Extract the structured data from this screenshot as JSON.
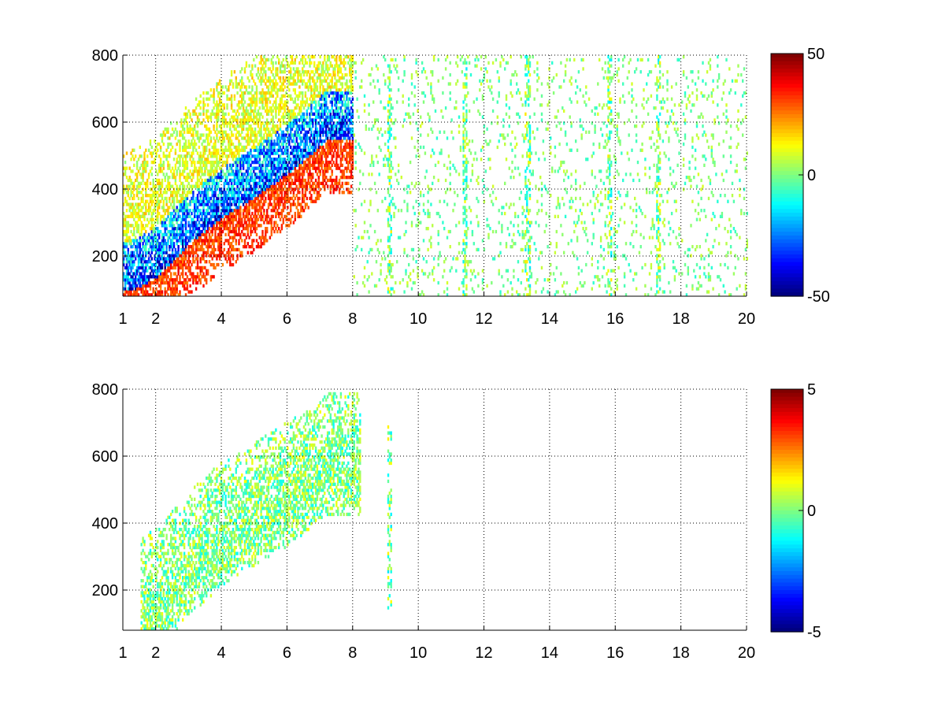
{
  "chart_data": [
    {
      "type": "heatmap",
      "title": "",
      "xlabel": "",
      "ylabel": "",
      "xlim": [
        1,
        20
      ],
      "ylim": [
        80,
        800
      ],
      "x_ticks": [
        "1",
        "2",
        "4",
        "6",
        "8",
        "10",
        "12",
        "14",
        "16",
        "18",
        "20"
      ],
      "x_tick_values": [
        1,
        2,
        4,
        6,
        8,
        10,
        12,
        14,
        16,
        18,
        20
      ],
      "y_ticks": [
        "200",
        "400",
        "600",
        "800"
      ],
      "y_tick_values": [
        200,
        400,
        600,
        800
      ],
      "grid": true,
      "colormap": "jet",
      "colorbar": {
        "min": -50,
        "max": 50,
        "ticks": [
          "50",
          "0",
          "-50"
        ],
        "tick_values": [
          50,
          0,
          -50
        ]
      },
      "features": [
        {
          "x_range": [
            1.0,
            8.0
          ],
          "ridge": [
            [
              1.2,
              90
            ],
            [
              2.0,
              130
            ],
            [
              3.0,
              230
            ],
            [
              4.0,
              310
            ],
            [
              5.0,
              370
            ],
            [
              5.7,
              420
            ],
            [
              6.5,
              480
            ],
            [
              7.2,
              540
            ]
          ],
          "value_low_side": 40,
          "value_high_side": -40
        },
        {
          "note_columns": [
            9.1,
            11.4,
            13.3,
            15.8,
            17.3
          ]
        }
      ]
    },
    {
      "type": "heatmap",
      "title": "",
      "xlabel": "",
      "ylabel": "",
      "xlim": [
        1,
        20
      ],
      "ylim": [
        80,
        800
      ],
      "x_ticks": [
        "1",
        "2",
        "4",
        "6",
        "8",
        "10",
        "12",
        "14",
        "16",
        "18",
        "20"
      ],
      "x_tick_values": [
        1,
        2,
        4,
        6,
        8,
        10,
        12,
        14,
        16,
        18,
        20
      ],
      "y_ticks": [
        "200",
        "400",
        "600",
        "800"
      ],
      "y_tick_values": [
        200,
        400,
        600,
        800
      ],
      "grid": true,
      "colormap": "jet",
      "colorbar": {
        "min": -5,
        "max": 5,
        "ticks": [
          "5",
          "0",
          "-5"
        ],
        "tick_values": [
          5,
          0,
          -5
        ]
      },
      "features": [
        {
          "x_range": [
            1.5,
            8.2
          ],
          "ridge": [
            [
              1.5,
              90
            ],
            [
              2.0,
              120
            ],
            [
              3.0,
              230
            ],
            [
              4.0,
              320
            ],
            [
              5.0,
              380
            ],
            [
              5.7,
              420
            ],
            [
              6.5,
              470
            ],
            [
              7.2,
              530
            ]
          ],
          "value_low_side": 0.5,
          "value_high_side": -0.5
        },
        {
          "note_columns": [
            9.1
          ]
        }
      ]
    }
  ]
}
